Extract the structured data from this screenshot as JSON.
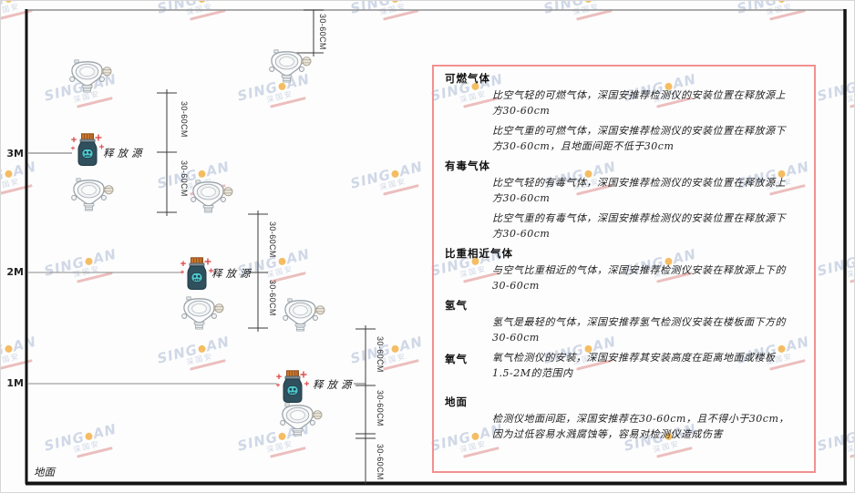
{
  "brand_watermark": {
    "name": "SINGOAN",
    "part1": "SING",
    "part2": "AN",
    "cn": "深国安",
    "dot_color": "#f2ae3d",
    "text_color": "#c6d0e2"
  },
  "diagram": {
    "heights": [
      "3M",
      "2M",
      "1M"
    ],
    "ground_label": "地面",
    "source_label": "释放源",
    "dim_label": "30-60CM",
    "colors": {
      "wall": "#141414",
      "ceiling_line": "#909090",
      "dimension_line": "#3c3c3c",
      "bottle_body": "#31505e",
      "bottle_cap": "#c9752e",
      "bottle_face": "#4fc8cd",
      "sparkle": "#e25050",
      "detector_outline": "#9aa4ab"
    }
  },
  "panel": {
    "border_color": "#f29090",
    "sections": [
      {
        "heading": "可燃气体",
        "paragraphs": [
          "比空气轻的可燃气体，深国安推荐检测仪的安装位置在释放源上方30-60cm",
          "比空气重的可燃气体，深国安推荐检测仪的安装位置在释放源下方30-60cm，且地面间距不低于30cm"
        ]
      },
      {
        "heading": "有毒气体",
        "paragraphs": [
          "比空气轻的有毒气体，深国安推荐检测仪的安装位置在释放源上方30-60cm",
          "比空气重的有毒气体，深国安推荐检测仪的安装位置在释放源下方30-60cm"
        ]
      },
      {
        "heading": "比重相近气体",
        "paragraphs": [
          "与空气比重相近的气体，深国安推荐检测仪安装在释放源上下的30-60cm"
        ]
      },
      {
        "heading": "氢气",
        "paragraphs": [
          "氢气是最轻的气体，深国安推荐氢气检测仪安装在楼板面下方的30-60cm"
        ]
      },
      {
        "heading": "氧气",
        "paragraphs": [
          "氧气检测仪的安装，深国安推荐其安装高度在距离地面或楼板1.5-2M的范围内"
        ]
      },
      {
        "heading": "地面",
        "paragraphs": [
          "检测仪地面间距，深国安推荐在30-60cm，且不得小于30cm，因为过低容易水溅腐蚀等，容易对检测仪造成伤害"
        ]
      }
    ]
  }
}
